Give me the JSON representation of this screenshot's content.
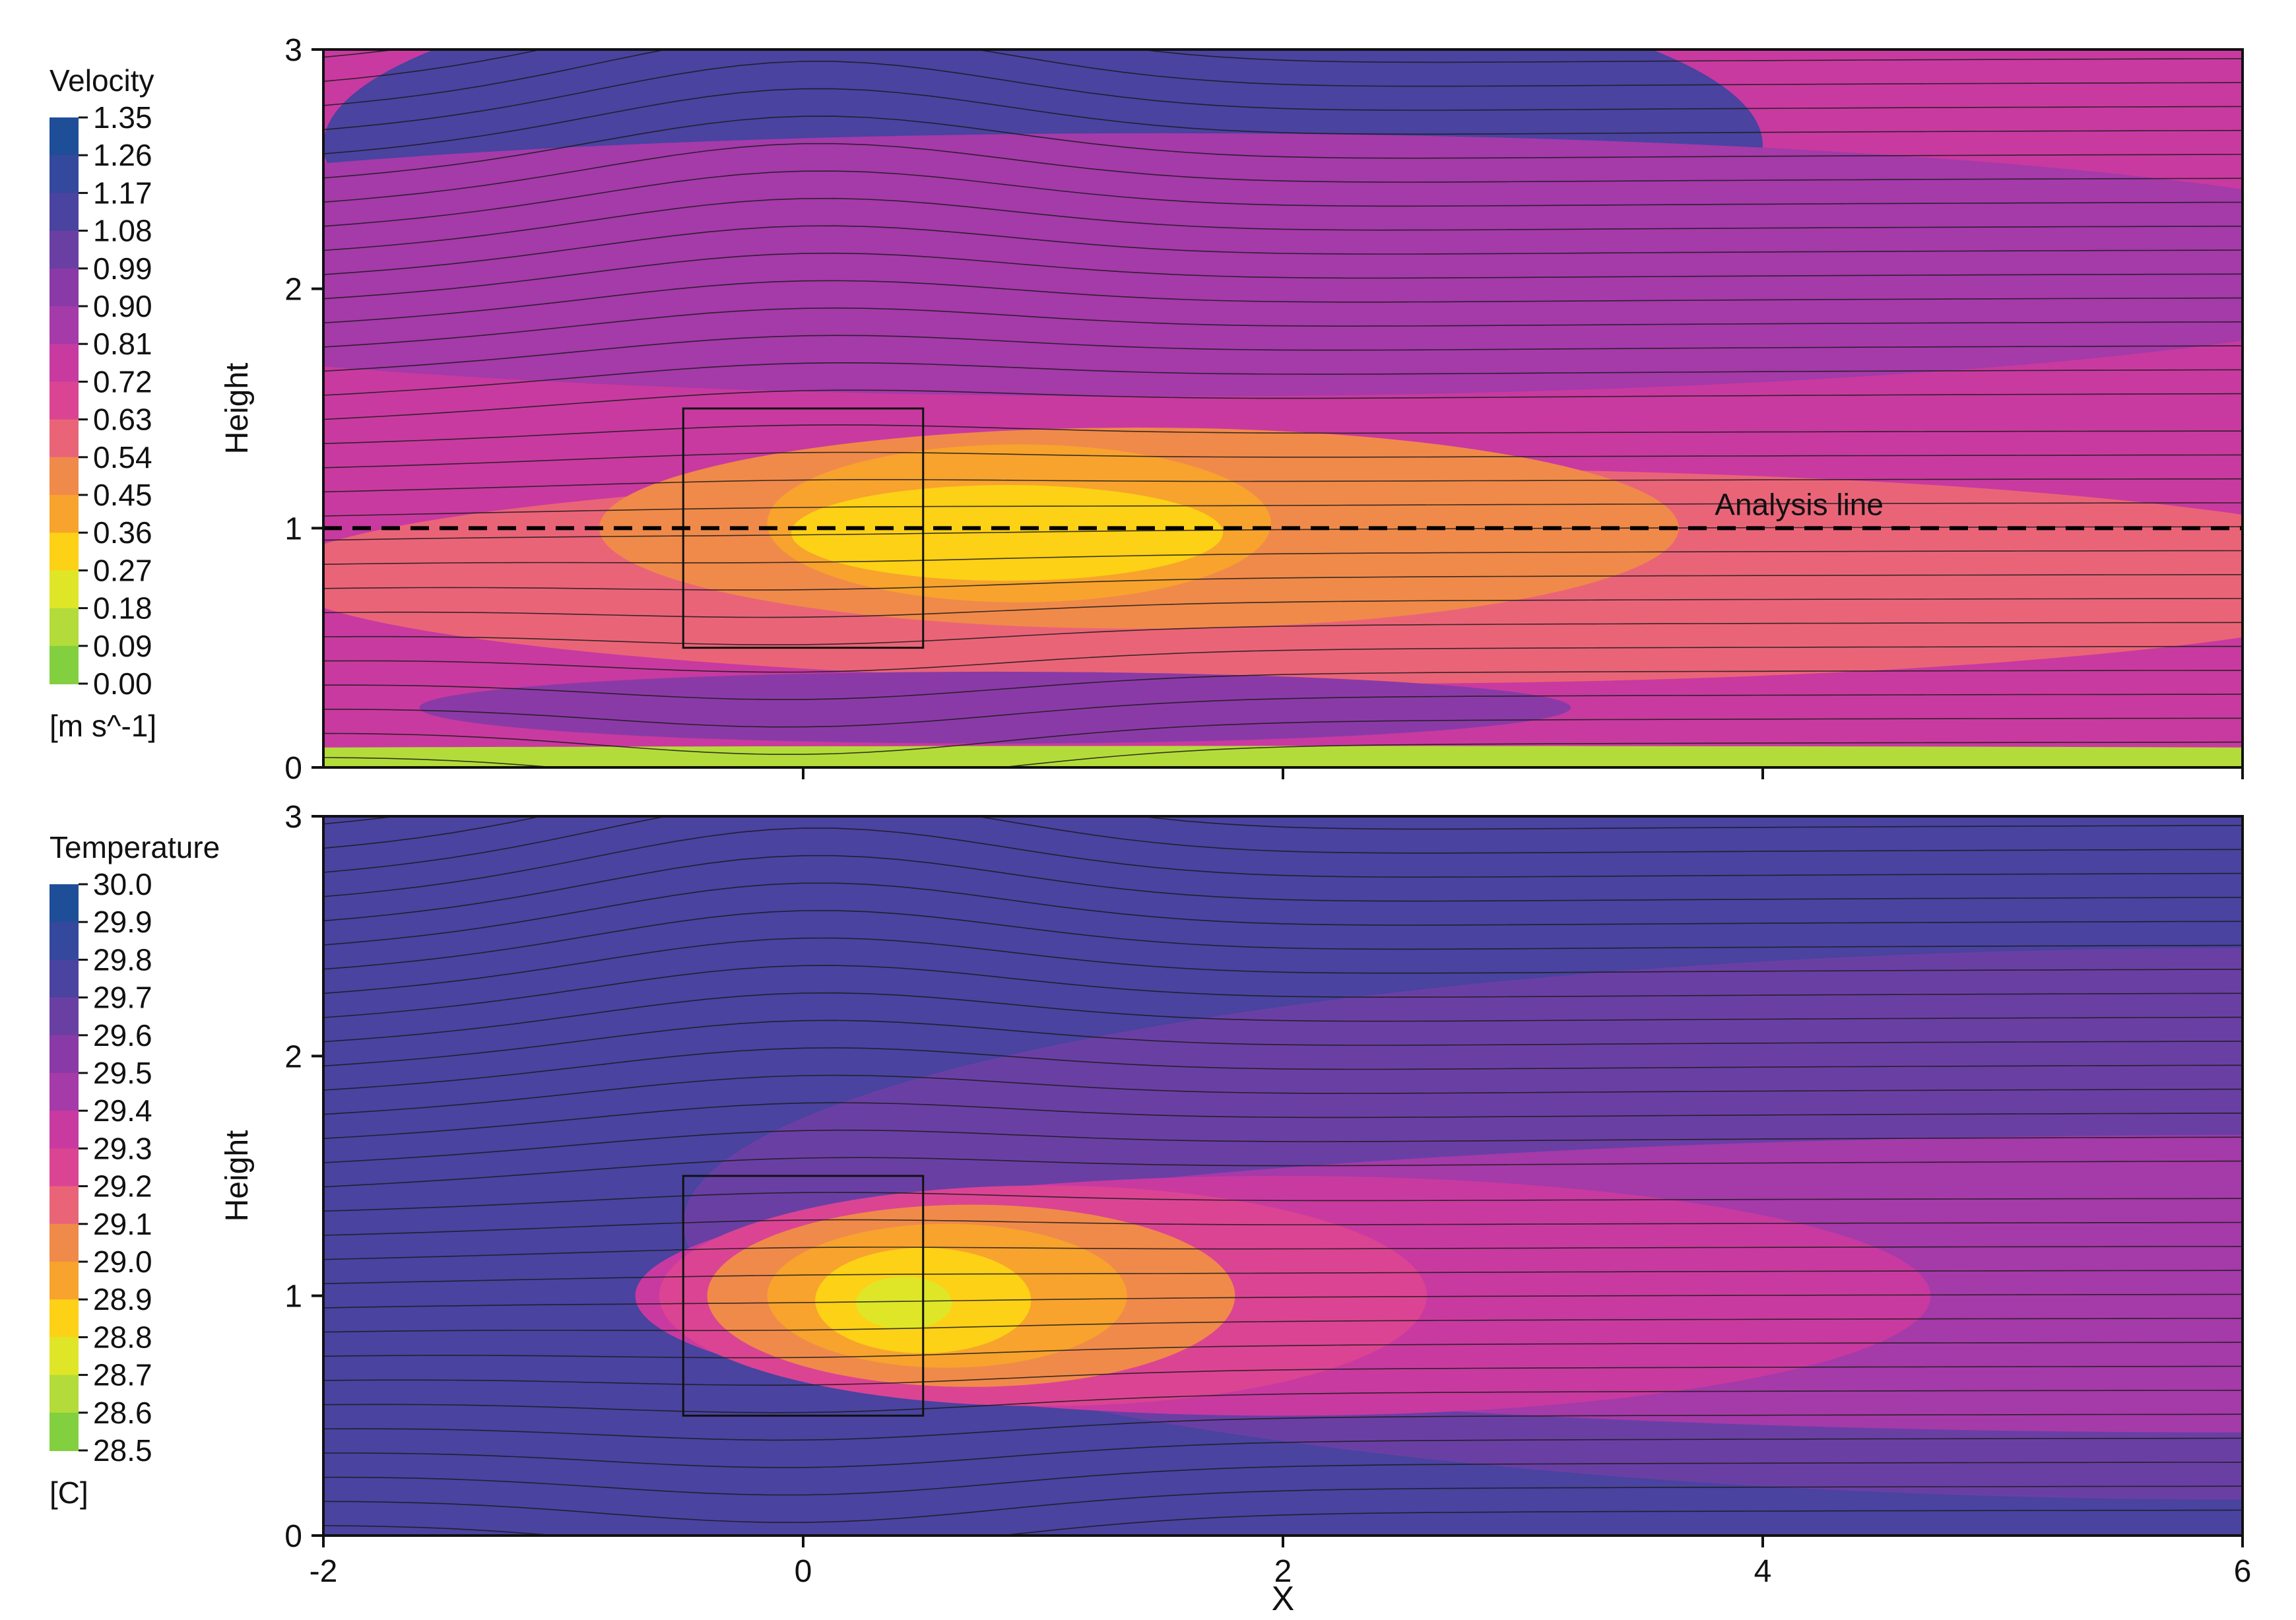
{
  "chart_data": [
    {
      "type": "heatmap",
      "title": "",
      "xlabel": "",
      "ylabel": "Height",
      "xlim": [
        -2,
        6
      ],
      "ylim": [
        0,
        3
      ],
      "x_ticks": [
        0,
        2,
        4,
        6
      ],
      "x_tick_labels": [
        "",
        "",
        "",
        ""
      ],
      "y_ticks": [
        0,
        1,
        2,
        3
      ],
      "y_tick_labels": [
        "0",
        "1",
        "2",
        "3"
      ],
      "colorbar": {
        "title": "Velocity",
        "unit": "[m s^-1]",
        "levels": [
          "1.35",
          "1.26",
          "1.17",
          "1.08",
          "0.99",
          "0.90",
          "0.81",
          "0.72",
          "0.63",
          "0.54",
          "0.45",
          "0.36",
          "0.27",
          "0.18",
          "0.09",
          "0.00"
        ],
        "colors": [
          "#1f4e99",
          "#34489e",
          "#4a43a0",
          "#6a3fa4",
          "#8a3aa6",
          "#a53aa9",
          "#c83aa0",
          "#db4493",
          "#ea6478",
          "#f08a4a",
          "#f7a32e",
          "#fcd116",
          "#dfe628",
          "#b3dc3a",
          "#82cf3f",
          "#5ec24a"
        ]
      },
      "field": [
        {
          "value": 0.76,
          "note": "background"
        },
        {
          "value": 1.3,
          "center": [
            0.8,
            2.7
          ],
          "radius": [
            1.9,
            0.45
          ]
        },
        {
          "value": 1.17,
          "center": [
            1.0,
            2.6
          ],
          "radius": [
            3.0,
            0.75
          ]
        },
        {
          "value": 0.9,
          "center": [
            1.5,
            2.1
          ],
          "radius": [
            5.5,
            0.55
          ]
        },
        {
          "value": 0.63,
          "center": [
            2.3,
            0.8
          ],
          "radius": [
            4.5,
            0.45
          ]
        },
        {
          "value": 0.54,
          "center": [
            1.4,
            1.0
          ],
          "radius": [
            2.25,
            0.42
          ]
        },
        {
          "value": 0.45,
          "center": [
            0.9,
            1.02
          ],
          "radius": [
            1.05,
            0.33
          ]
        },
        {
          "value": 0.36,
          "center": [
            0.85,
            0.98
          ],
          "radius": [
            0.9,
            0.2
          ]
        },
        {
          "value": 0.99,
          "center": [
            0.8,
            0.25
          ],
          "radius": [
            2.4,
            0.15
          ]
        },
        {
          "value": 0.18,
          "center": [
            2.0,
            0.04
          ],
          "radius": [
            8.0,
            0.05
          ],
          "note": "near-ground layer"
        }
      ],
      "streamlines_count": 30,
      "box": {
        "x": [
          -0.5,
          0.5
        ],
        "y": [
          0.5,
          1.5
        ]
      },
      "analysis_line": {
        "y": 1,
        "label": "Analysis line"
      }
    },
    {
      "type": "heatmap",
      "title": "",
      "xlabel": "X",
      "ylabel": "Height",
      "xlim": [
        -2,
        6
      ],
      "ylim": [
        0,
        3
      ],
      "x_ticks": [
        -2,
        0,
        2,
        4,
        6
      ],
      "x_tick_labels": [
        "-2",
        "0",
        "2",
        "4",
        "6"
      ],
      "y_ticks": [
        0,
        1,
        2,
        3
      ],
      "y_tick_labels": [
        "0",
        "1",
        "2",
        "3"
      ],
      "colorbar": {
        "title": "Temperature",
        "unit": "[C]",
        "levels": [
          "30.0",
          "29.9",
          "29.8",
          "29.7",
          "29.6",
          "29.5",
          "29.4",
          "29.3",
          "29.2",
          "29.1",
          "29.0",
          "28.9",
          "28.8",
          "28.7",
          "28.6",
          "28.5"
        ],
        "colors": [
          "#1f4e99",
          "#34489e",
          "#4a43a0",
          "#6a3fa4",
          "#8a3aa6",
          "#a53aa9",
          "#c83aa0",
          "#db4493",
          "#ea6478",
          "#f08a4a",
          "#f7a32e",
          "#fcd116",
          "#dfe628",
          "#b3dc3a",
          "#82cf3f",
          "#5ec24a"
        ]
      },
      "field": [
        {
          "value": 29.8,
          "note": "background"
        },
        {
          "value": 29.65,
          "center": [
            6.0,
            1.3
          ],
          "radius": [
            6.5,
            1.15
          ]
        },
        {
          "value": 29.5,
          "center": [
            6.0,
            1.05
          ],
          "radius": [
            6.4,
            0.62
          ]
        },
        {
          "value": 29.4,
          "center": [
            2.0,
            1.0
          ],
          "radius": [
            2.7,
            0.5
          ]
        },
        {
          "value": 29.25,
          "center": [
            1.0,
            1.0
          ],
          "radius": [
            1.6,
            0.46
          ]
        },
        {
          "value": 29.1,
          "center": [
            0.7,
            1.0
          ],
          "radius": [
            1.1,
            0.38
          ]
        },
        {
          "value": 29.0,
          "center": [
            0.6,
            1.0
          ],
          "radius": [
            0.75,
            0.3
          ]
        },
        {
          "value": 28.9,
          "center": [
            0.5,
            0.98
          ],
          "radius": [
            0.45,
            0.22
          ]
        },
        {
          "value": 28.8,
          "center": [
            0.42,
            0.97
          ],
          "radius": [
            0.2,
            0.11
          ]
        }
      ],
      "streamlines_count": 30,
      "box": {
        "x": [
          -0.5,
          0.5
        ],
        "y": [
          0.5,
          1.5
        ]
      }
    }
  ]
}
